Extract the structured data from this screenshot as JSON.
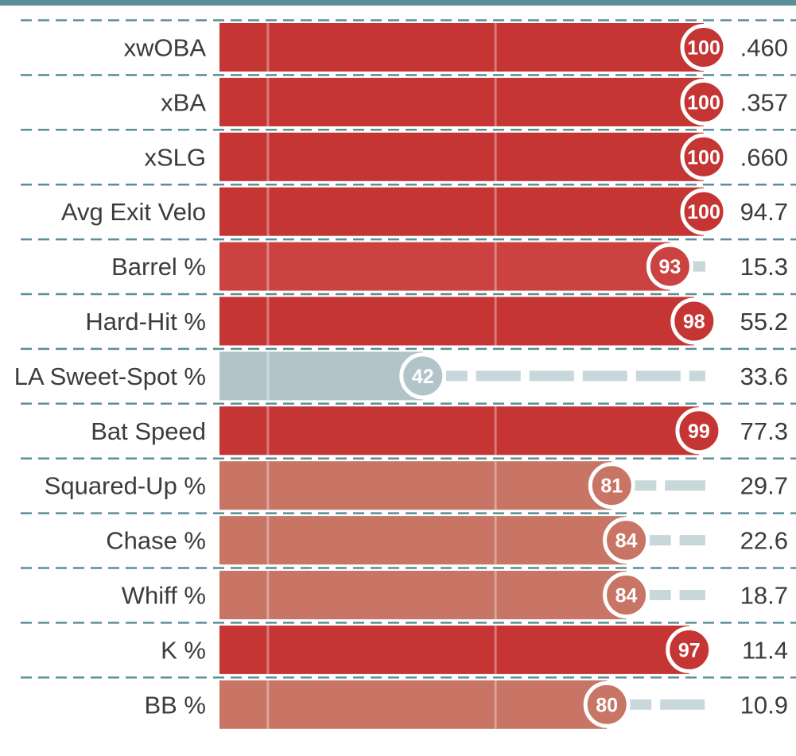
{
  "chart_data": {
    "type": "bar",
    "title": "",
    "xlabel": "",
    "ylabel": "",
    "xlim": [
      0,
      100
    ],
    "categories": [
      "xwOBA",
      "xBA",
      "xSLG",
      "Avg Exit Velo",
      "Barrel %",
      "Hard-Hit %",
      "LA Sweet-Spot %",
      "Bat Speed",
      "Squared-Up %",
      "Chase %",
      "Whiff %",
      "K %",
      "BB %"
    ],
    "percentiles": [
      100,
      100,
      100,
      100,
      93,
      98,
      42,
      99,
      81,
      84,
      84,
      97,
      80
    ],
    "values": [
      ".460",
      ".357",
      ".660",
      "94.7",
      "15.3",
      "55.2",
      "33.6",
      "77.3",
      "29.7",
      "22.6",
      "18.7",
      "11.4",
      "10.9"
    ],
    "colors": {
      "top_bar": "#5a8e98",
      "divider": "#5a8e98",
      "elite": "#c53534",
      "great": "#cb4240",
      "good": "#c87565",
      "average": "#b3c4c9",
      "track": "#c7d7da"
    }
  }
}
